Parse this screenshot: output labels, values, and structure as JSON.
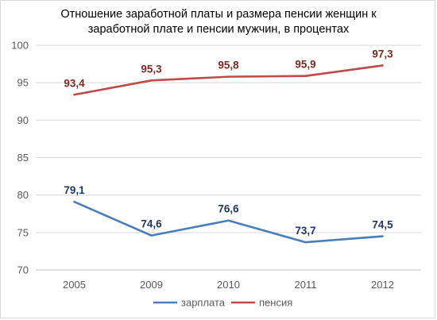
{
  "chart_data": {
    "type": "line",
    "title": "Отношение  заработной платы и размера пенсии женщин  к заработной плате и пенсии мужчин,  в процентах",
    "categories": [
      "2005",
      "2009",
      "2010",
      "2011",
      "2012"
    ],
    "series": [
      {
        "name": "зарплата",
        "color": "#4a7ebb",
        "values": [
          79.1,
          74.6,
          76.6,
          73.7,
          74.5
        ],
        "labels": [
          "79,1",
          "74,6",
          "76,6",
          "73,7",
          "74,5"
        ],
        "label_color": "#1f3864"
      },
      {
        "name": "пенсия",
        "color": "#be4b48",
        "values": [
          93.4,
          95.3,
          95.8,
          95.9,
          97.3
        ],
        "labels": [
          "93,4",
          "95,3",
          "95,8",
          "95,9",
          "97,3"
        ],
        "label_color": "#7b2a22"
      }
    ],
    "ylim": [
      70,
      100
    ],
    "yticks": [
      70,
      75,
      80,
      85,
      90,
      95,
      100
    ],
    "grid": true,
    "legend": "bottom"
  }
}
